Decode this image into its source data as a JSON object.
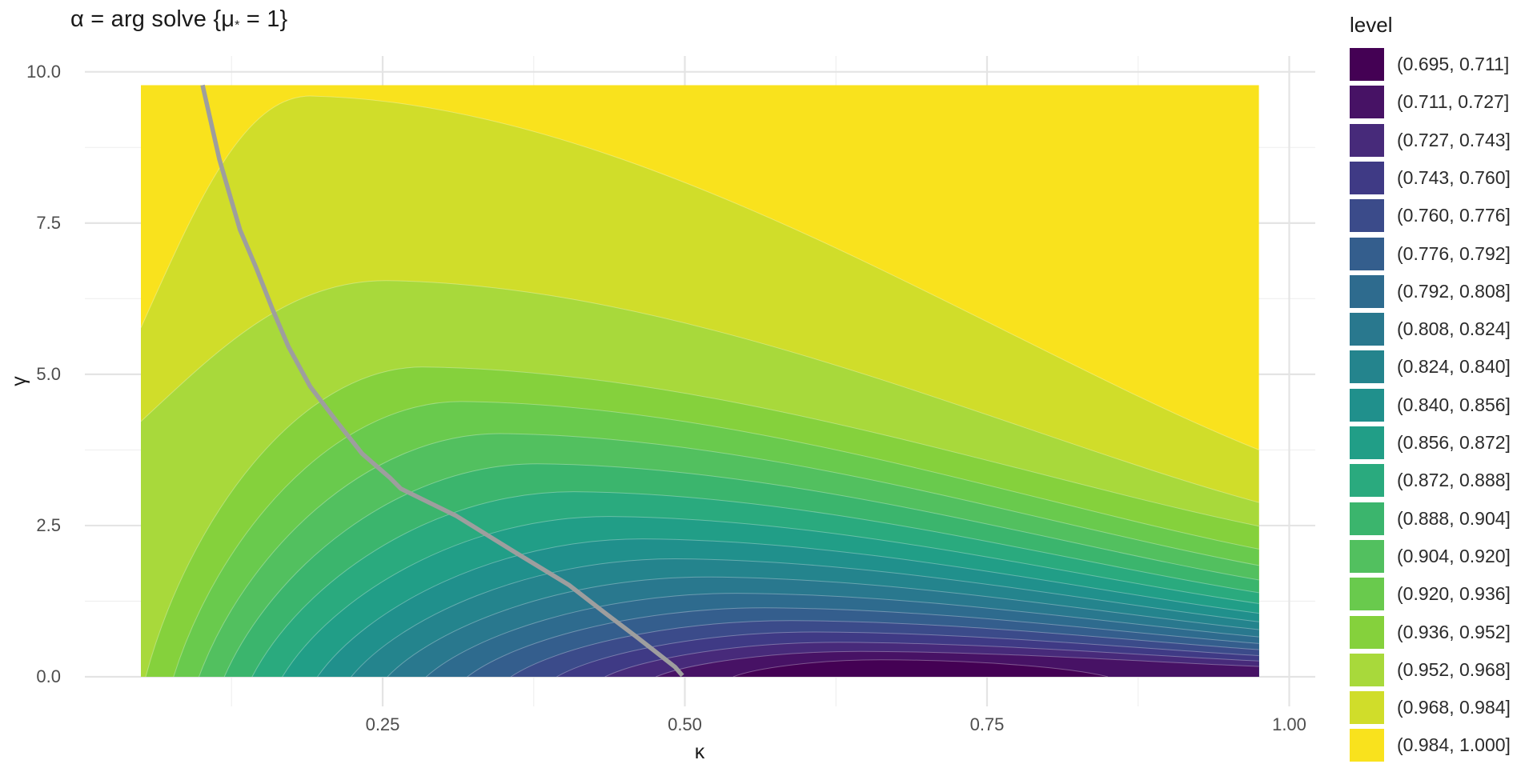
{
  "title": {
    "part1": "α = arg solve {μ",
    "sub": "*",
    "part2": " = 1}"
  },
  "axes": {
    "x": {
      "label": "κ",
      "ticks": [
        {
          "value": 0.25,
          "label": "0.25"
        },
        {
          "value": 0.5,
          "label": "0.50"
        },
        {
          "value": 0.75,
          "label": "0.75"
        },
        {
          "value": 1.0,
          "label": "1.00"
        }
      ],
      "minor": [
        0.125,
        0.375,
        0.625,
        0.875
      ]
    },
    "y": {
      "label": "γ",
      "ticks": [
        {
          "value": 0.0,
          "label": "0.0"
        },
        {
          "value": 2.5,
          "label": "2.5"
        },
        {
          "value": 5.0,
          "label": "5.0"
        },
        {
          "value": 7.5,
          "label": "7.5"
        },
        {
          "value": 10.0,
          "label": "10.0"
        }
      ],
      "minor": [
        1.25,
        3.75,
        6.25,
        8.75
      ]
    }
  },
  "legend": {
    "title": "level"
  },
  "chart_data": {
    "type": "filled-contour",
    "title": "α = arg solve {μ* = 1}",
    "xlabel": "κ",
    "ylabel": "γ",
    "x_domain": [
      0.05,
      0.975
    ],
    "y_domain": [
      0.0,
      9.78
    ],
    "grid": "on",
    "legend_position": "right",
    "bands": [
      {
        "label": "(0.695, 0.711]",
        "color": "#440154"
      },
      {
        "label": "(0.711, 0.727]",
        "color": "#471265"
      },
      {
        "label": "(0.727, 0.743]",
        "color": "#472A7A"
      },
      {
        "label": "(0.743, 0.760]",
        "color": "#3F3A85"
      },
      {
        "label": "(0.760, 0.776]",
        "color": "#3B4B8A"
      },
      {
        "label": "(0.776, 0.792]",
        "color": "#345E8D"
      },
      {
        "label": "(0.792, 0.808]",
        "color": "#2E6B8E"
      },
      {
        "label": "(0.808, 0.824]",
        "color": "#29788E"
      },
      {
        "label": "(0.824, 0.840]",
        "color": "#24848D"
      },
      {
        "label": "(0.840, 0.856]",
        "color": "#20908C"
      },
      {
        "label": "(0.856, 0.872]",
        "color": "#219E87"
      },
      {
        "label": "(0.872, 0.888]",
        "color": "#2AAA7E"
      },
      {
        "label": "(0.888, 0.904]",
        "color": "#3BB56D"
      },
      {
        "label": "(0.904, 0.920]",
        "color": "#52C05F"
      },
      {
        "label": "(0.920, 0.936]",
        "color": "#69CA4D"
      },
      {
        "label": "(0.936, 0.952]",
        "color": "#85D13C"
      },
      {
        "label": "(0.952, 0.968]",
        "color": "#A8D93B"
      },
      {
        "label": "(0.968, 0.984]",
        "color": "#D0DD2A"
      },
      {
        "label": "(0.984, 1.000]",
        "color": "#F9E21D"
      }
    ],
    "contour_lines": [
      {
        "level": 0.711,
        "start": [
          0.54,
          0
        ],
        "start_edge": "bottom",
        "peak": [
          0.662,
          0.28
        ],
        "end": [
          0.85,
          0
        ],
        "end_edge": "bottom"
      },
      {
        "level": 0.727,
        "start": [
          0.476,
          0
        ],
        "start_edge": "bottom",
        "peak": [
          0.645,
          0.42
        ],
        "end": [
          0.975,
          0.17
        ],
        "end_edge": "right"
      },
      {
        "level": 0.743,
        "start": [
          0.434,
          0
        ],
        "start_edge": "bottom",
        "peak": [
          0.627,
          0.57
        ],
        "end": [
          0.975,
          0.26
        ],
        "end_edge": "right"
      },
      {
        "level": 0.76,
        "start": [
          0.394,
          0
        ],
        "start_edge": "bottom",
        "peak": [
          0.608,
          0.74
        ],
        "end": [
          0.975,
          0.35
        ],
        "end_edge": "right"
      },
      {
        "level": 0.776,
        "start": [
          0.356,
          0
        ],
        "start_edge": "bottom",
        "peak": [
          0.588,
          0.93
        ],
        "end": [
          0.975,
          0.45
        ],
        "end_edge": "right"
      },
      {
        "level": 0.792,
        "start": [
          0.32,
          0
        ],
        "start_edge": "bottom",
        "peak": [
          0.566,
          1.14
        ],
        "end": [
          0.975,
          0.55
        ],
        "end_edge": "right"
      },
      {
        "level": 0.808,
        "start": [
          0.286,
          0
        ],
        "start_edge": "bottom",
        "peak": [
          0.543,
          1.38
        ],
        "end": [
          0.975,
          0.66
        ],
        "end_edge": "right"
      },
      {
        "level": 0.824,
        "start": [
          0.254,
          0
        ],
        "start_edge": "bottom",
        "peak": [
          0.518,
          1.65
        ],
        "end": [
          0.975,
          0.78
        ],
        "end_edge": "right"
      },
      {
        "level": 0.84,
        "start": [
          0.224,
          0
        ],
        "start_edge": "bottom",
        "peak": [
          0.492,
          1.95
        ],
        "end": [
          0.975,
          0.91
        ],
        "end_edge": "right"
      },
      {
        "level": 0.856,
        "start": [
          0.196,
          0
        ],
        "start_edge": "bottom",
        "peak": [
          0.465,
          2.28
        ],
        "end": [
          0.975,
          1.05
        ],
        "end_edge": "right"
      },
      {
        "level": 0.872,
        "start": [
          0.167,
          0
        ],
        "start_edge": "bottom",
        "peak": [
          0.437,
          2.65
        ],
        "end": [
          0.975,
          1.21
        ],
        "end_edge": "right"
      },
      {
        "level": 0.888,
        "start": [
          0.142,
          0
        ],
        "start_edge": "bottom",
        "peak": [
          0.408,
          3.06
        ],
        "end": [
          0.975,
          1.39
        ],
        "end_edge": "right"
      },
      {
        "level": 0.904,
        "start": [
          0.119,
          0
        ],
        "start_edge": "bottom",
        "peak": [
          0.378,
          3.52
        ],
        "end": [
          0.975,
          1.6
        ],
        "end_edge": "right"
      },
      {
        "level": 0.92,
        "start": [
          0.098,
          0
        ],
        "start_edge": "bottom",
        "peak": [
          0.347,
          4.02
        ],
        "end": [
          0.975,
          1.84
        ],
        "end_edge": "right"
      },
      {
        "level": 0.936,
        "start": [
          0.077,
          0
        ],
        "start_edge": "bottom",
        "peak": [
          0.315,
          4.55
        ],
        "end": [
          0.975,
          2.11
        ],
        "end_edge": "right"
      },
      {
        "level": 0.952,
        "start": [
          0.054,
          0
        ],
        "start_edge": "bottom",
        "peak": [
          0.283,
          5.12
        ],
        "end": [
          0.975,
          2.49
        ],
        "end_edge": "right"
      },
      {
        "level": 0.968,
        "start": [
          0.05,
          4.22
        ],
        "start_edge": "left",
        "peak": [
          0.253,
          6.55
        ],
        "end": [
          0.975,
          2.88
        ],
        "end_edge": "right"
      },
      {
        "level": 0.984,
        "start": [
          0.05,
          5.77
        ],
        "start_edge": "left",
        "peak": [
          0.19,
          9.6
        ],
        "end": [
          0.975,
          3.75
        ],
        "end_edge": "right"
      }
    ],
    "constraint_curve": {
      "color": "#9E9E9E",
      "points": [
        [
          0.101,
          9.78
        ],
        [
          0.115,
          8.55
        ],
        [
          0.132,
          7.39
        ],
        [
          0.145,
          6.78
        ],
        [
          0.159,
          6.07
        ],
        [
          0.172,
          5.46
        ],
        [
          0.19,
          4.8
        ],
        [
          0.212,
          4.22
        ],
        [
          0.233,
          3.69
        ],
        [
          0.256,
          3.29
        ],
        [
          0.265,
          3.11
        ],
        [
          0.311,
          2.66
        ],
        [
          0.357,
          2.09
        ],
        [
          0.404,
          1.52
        ],
        [
          0.433,
          1.07
        ],
        [
          0.46,
          0.66
        ],
        [
          0.478,
          0.38
        ],
        [
          0.492,
          0.16
        ],
        [
          0.498,
          0.02
        ]
      ]
    }
  },
  "colors": {
    "background": "#FFFFFF",
    "grid_major": "#E4E4E4",
    "grid_minor": "#F0F0F0",
    "axis_text": "#4D4D4D",
    "title_text": "#1A1A1A",
    "curve": "#9E9E9E"
  }
}
